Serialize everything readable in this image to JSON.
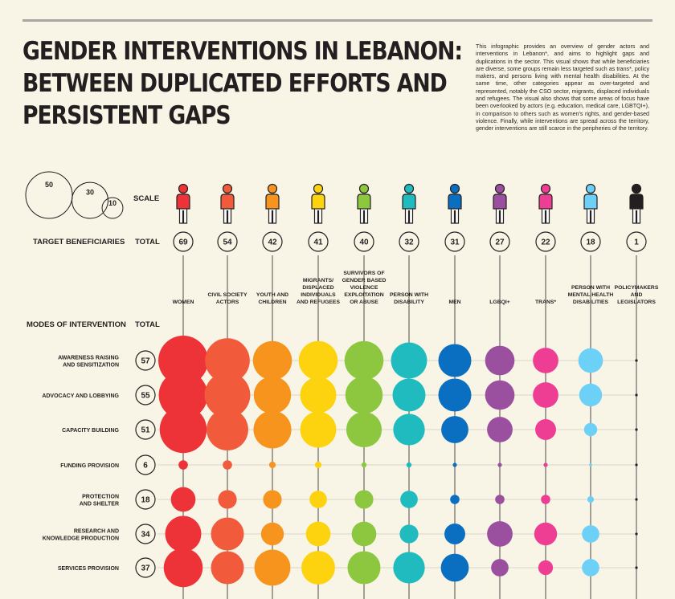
{
  "header": {
    "title_lines": [
      "GENDER INTERVENTIONS IN LEBANON:",
      "BETWEEN DUPLICATED EFFORTS AND",
      "PERSISTENT GAPS"
    ],
    "description": "This infographic provides an overview of gender actors and interventions in Lebanon*, and aims to highlight gaps and duplications in the sector. This visual shows that while beneficiaries are diverse, some groups remain less targeted such as trans*, policy makers, and persons living with mental health disabilities. At the same time, other categories appear as over-targeted and represented, notably the CSO sector, migrants, displaced individuals and refugees. The visual also shows that some areas of focus have been overlooked by actors (e.g. education, medical care, LGBTQI+), in comparison to others such as women's rights, and gender-based violence. Finally, while interventions are spread across the territory, gender interventions are still scarce in the peripheries of the territory."
  },
  "scale_legend": {
    "label": "SCALE",
    "values": [
      50,
      30,
      10
    ]
  },
  "chart_data": {
    "type": "bubble-matrix",
    "beneficiaries_heading": "TARGET BENEFICIARIES",
    "modes_heading": "MODES OF INTERVENTION",
    "total_label": "TOTAL",
    "beneficiaries": [
      {
        "label": [
          "WOMEN"
        ],
        "total": 69,
        "color": "#ee3338"
      },
      {
        "label": [
          "CIVIL SOCIETY",
          "ACTORS"
        ],
        "total": 54,
        "color": "#f15a3b"
      },
      {
        "label": [
          "YOUTH AND",
          "CHILDREN"
        ],
        "total": 42,
        "color": "#f7941e"
      },
      {
        "label": [
          "MIGRANTS/",
          "DISPLACED",
          "INDIVIDUALS",
          "AND REFUGEES"
        ],
        "total": 41,
        "color": "#fdd20e"
      },
      {
        "label": [
          "SURVIVORS OF",
          "GENDER BASED",
          "VIOLENCE",
          "EXPLOITATION",
          "OR ABUSE"
        ],
        "total": 40,
        "color": "#8dc63f"
      },
      {
        "label": [
          "PERSON WITH",
          "DISABILITY"
        ],
        "total": 32,
        "color": "#1fbbbf"
      },
      {
        "label": [
          "MEN"
        ],
        "total": 31,
        "color": "#0a6fc0"
      },
      {
        "label": [
          "LGBQI+"
        ],
        "total": 27,
        "color": "#9b4f9f"
      },
      {
        "label": [
          "TRANS*"
        ],
        "total": 22,
        "color": "#ee3e93"
      },
      {
        "label": [
          "PERSON WITH",
          "MENTAL HEALTH",
          "DISABILITIES"
        ],
        "total": 18,
        "color": "#6dd0f7"
      },
      {
        "label": [
          "POLICYMAKERS",
          "AND",
          "LEGISLATORS"
        ],
        "total": 1,
        "color": "#231f20"
      }
    ],
    "modes": [
      {
        "label": [
          "AWARENESS RAISING",
          "AND SENSITIZATION"
        ],
        "total": 57,
        "values": [
          57,
          46,
          35,
          35,
          35,
          30,
          25,
          20,
          15,
          14,
          0
        ]
      },
      {
        "label": [
          "ADVOCACY AND LOBBYING"
        ],
        "total": 55,
        "values": [
          55,
          48,
          32,
          30,
          32,
          25,
          25,
          20,
          15,
          12,
          0
        ]
      },
      {
        "label": [
          "CAPACITY BUILDING"
        ],
        "total": 51,
        "values": [
          51,
          40,
          33,
          30,
          29,
          23,
          17,
          15,
          10,
          4,
          0
        ]
      },
      {
        "label": [
          "FUNDING PROVISION"
        ],
        "total": 6,
        "values": [
          2,
          2,
          1,
          1,
          0.6,
          0.6,
          0.4,
          0.4,
          0.4,
          0.2,
          0
        ]
      },
      {
        "label": [
          "PROTECTION",
          "AND SHELTER"
        ],
        "total": 18,
        "values": [
          14,
          8,
          8,
          7,
          8,
          7,
          2,
          2,
          2,
          1,
          0
        ]
      },
      {
        "label": [
          "RESEARCH AND",
          "KNOWLEDGE PRODUCTION"
        ],
        "total": 34,
        "values": [
          30,
          25,
          12,
          14,
          14,
          8,
          10,
          15,
          12,
          7,
          0
        ]
      },
      {
        "label": [
          "SERVICES PROVISION"
        ],
        "total": 37,
        "values": [
          35,
          25,
          30,
          26,
          25,
          23,
          18,
          7,
          5,
          7,
          0
        ]
      }
    ],
    "size_encoding": "circle area proportional to value (reference: 50, 30, 10)"
  }
}
